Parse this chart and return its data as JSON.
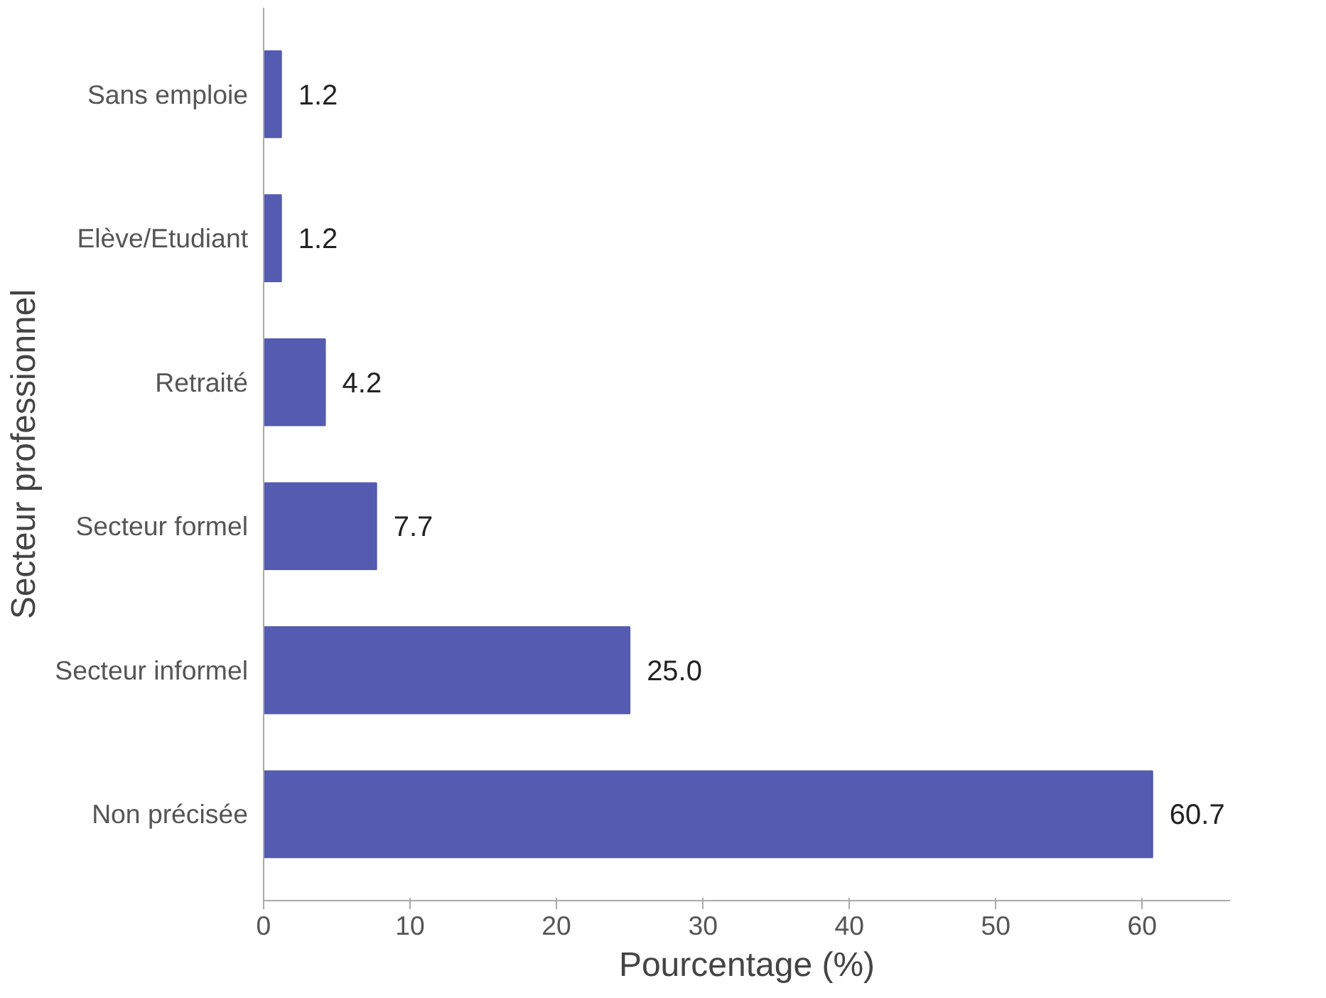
{
  "chart_data": {
    "type": "bar",
    "orientation": "horizontal",
    "xlabel": "Pourcentage (%)",
    "ylabel": "Secteur professionnel",
    "categories": [
      "Sans emploie",
      "Elève/Etudiant",
      "Retraité",
      "Secteur formel",
      "Secteur informel",
      "Non précisée"
    ],
    "values": [
      1.2,
      1.2,
      4.2,
      7.7,
      25.0,
      60.7
    ],
    "value_labels": [
      "1.2",
      "1.2",
      "4.2",
      "7.7",
      "25.0",
      "60.7"
    ],
    "color": "#545bb0",
    "xlim": [
      0,
      66
    ],
    "xticks": [
      0,
      10,
      20,
      30,
      40,
      50,
      60
    ],
    "grid": false
  }
}
